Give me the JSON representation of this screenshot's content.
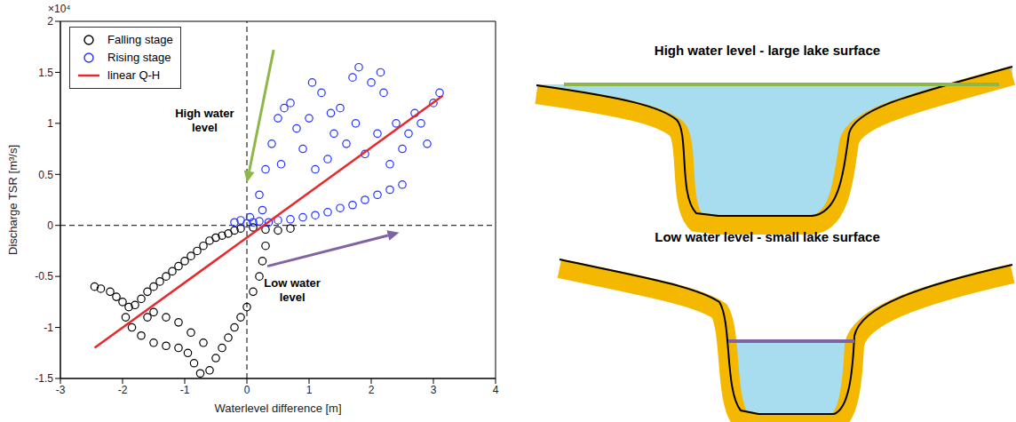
{
  "chart_data": {
    "type": "scatter",
    "x_label": "Waterlevel difference [m]",
    "y_label": "Discharge TSR [m³/s]",
    "y_multiplier_label": "×10⁴",
    "xlim": [
      -3,
      4
    ],
    "xticks": [
      -3,
      -2,
      -1,
      0,
      1,
      2,
      3,
      4
    ],
    "ylim": [
      -1.5,
      2
    ],
    "yticks": [
      -1.5,
      -1,
      -0.5,
      0,
      0.5,
      1,
      1.5,
      2
    ],
    "legend": "upper left",
    "reference_lines": [
      {
        "axis": "x",
        "value": 0
      },
      {
        "axis": "y",
        "value": 0
      }
    ],
    "series": [
      {
        "name": "Falling stage",
        "type": "scatter",
        "marker": "circle",
        "color": "#000000",
        "x": [
          -2.45,
          -2.35,
          -2.2,
          -2.1,
          -2.0,
          -1.9,
          -1.8,
          -1.7,
          -1.6,
          -1.5,
          -1.4,
          -1.3,
          -1.2,
          -1.1,
          -1.0,
          -0.9,
          -0.8,
          -0.7,
          -0.6,
          -0.5,
          -0.4,
          -0.3,
          -0.2,
          -0.1,
          0.1,
          0.3,
          0.5,
          0.7,
          -1.95,
          -1.85,
          -1.7,
          -1.5,
          -1.3,
          -1.1,
          -0.95,
          -0.85,
          -0.75,
          -0.6,
          -0.5,
          -0.4,
          -0.3,
          -0.2,
          -0.1,
          0.0,
          0.1,
          0.2,
          0.25,
          0.3,
          -1.3,
          -1.1,
          -0.9,
          -0.7,
          -1.5,
          -1.6
        ],
        "values": [
          -0.6,
          -0.62,
          -0.65,
          -0.7,
          -0.75,
          -0.8,
          -0.78,
          -0.72,
          -0.65,
          -0.6,
          -0.55,
          -0.5,
          -0.45,
          -0.4,
          -0.35,
          -0.3,
          -0.25,
          -0.2,
          -0.15,
          -0.12,
          -0.1,
          -0.08,
          -0.05,
          -0.03,
          -0.02,
          -0.04,
          -0.05,
          -0.03,
          -0.9,
          -1.0,
          -1.08,
          -1.15,
          -1.18,
          -1.2,
          -1.25,
          -1.35,
          -1.45,
          -1.42,
          -1.3,
          -1.2,
          -1.1,
          -1.0,
          -0.9,
          -0.8,
          -0.65,
          -0.5,
          -0.35,
          -0.2,
          -0.9,
          -0.95,
          -1.05,
          -1.15,
          -0.85,
          -0.9
        ]
      },
      {
        "name": "Rising stage",
        "type": "scatter",
        "marker": "circle",
        "color": "#2233ff",
        "x": [
          0.0,
          0.1,
          0.2,
          0.35,
          0.5,
          0.7,
          0.9,
          1.1,
          1.3,
          1.5,
          1.7,
          1.9,
          2.1,
          2.3,
          2.5,
          -0.2,
          -0.1,
          0.05,
          0.2,
          0.3,
          0.4,
          0.5,
          0.6,
          0.7,
          0.8,
          0.9,
          1.0,
          1.1,
          1.2,
          1.3,
          1.4,
          1.5,
          1.6,
          1.7,
          1.8,
          1.9,
          2.0,
          2.1,
          2.2,
          2.3,
          2.4,
          2.5,
          2.6,
          2.7,
          2.8,
          2.9,
          3.0,
          3.1,
          1.05,
          1.35,
          2.15,
          1.75,
          0.55,
          0.25
        ],
        "values": [
          0.02,
          0.03,
          0.04,
          0.03,
          0.05,
          0.06,
          0.08,
          0.1,
          0.13,
          0.17,
          0.2,
          0.25,
          0.3,
          0.35,
          0.4,
          0.03,
          0.05,
          0.08,
          0.3,
          0.55,
          0.8,
          1.05,
          1.15,
          1.2,
          0.95,
          0.75,
          1.05,
          0.55,
          1.3,
          0.65,
          0.9,
          1.15,
          0.8,
          1.45,
          1.55,
          0.7,
          1.4,
          0.9,
          1.3,
          0.6,
          1.0,
          0.75,
          0.9,
          1.1,
          1.0,
          0.8,
          1.2,
          1.3,
          1.4,
          1.1,
          1.5,
          1.0,
          0.6,
          0.15
        ]
      },
      {
        "name": "linear Q-H",
        "type": "line",
        "line_style": "solid",
        "color": "#e8282b",
        "x": [
          -2.45,
          3.15
        ],
        "values": [
          -1.2,
          1.27
        ]
      }
    ],
    "annotations": [
      {
        "text": "High water level",
        "x": -0.68,
        "y": 1.06,
        "color": "#000000",
        "arrow": {
          "from": [
            0.43,
            1.72
          ],
          "to": [
            0.0,
            0.42
          ],
          "color": "#8db849"
        }
      },
      {
        "text": "Low water level",
        "x": 0.73,
        "y": -0.6,
        "color": "#000000",
        "arrow": {
          "from": [
            0.33,
            -0.4
          ],
          "to": [
            2.45,
            -0.07
          ],
          "color": "#8064a2"
        }
      }
    ]
  },
  "diagram": {
    "panels": [
      {
        "label": "High water level - large lake surface",
        "water_line_color": "#8db849"
      },
      {
        "label": "Low water level - small lake surface",
        "water_line_color": "#8064a2"
      }
    ]
  }
}
